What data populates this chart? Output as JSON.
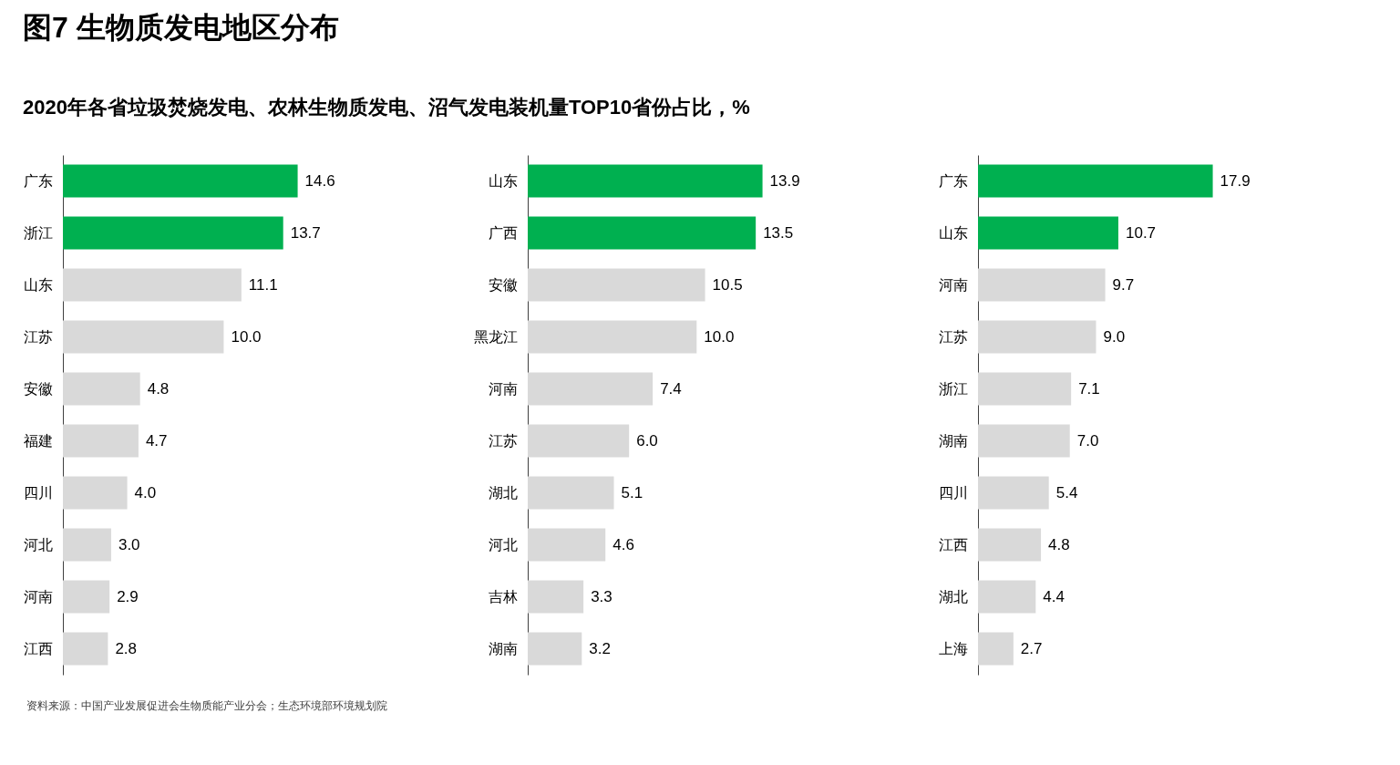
{
  "chart_data": [
    {
      "type": "bar",
      "orientation": "horizontal",
      "title": "图7  生物质发电地区分布",
      "subtitle": "2020年各省垃圾焚烧发电、农林生物质发电、沼气发电装机量TOP10省份占比，%",
      "categories": [
        "广东",
        "浙江",
        "山东",
        "江苏",
        "安徽",
        "福建",
        "四川",
        "河北",
        "河南",
        "江西"
      ],
      "values": [
        14.6,
        13.7,
        11.1,
        10.0,
        4.8,
        4.7,
        4.0,
        3.0,
        2.9,
        2.8
      ],
      "value_labels": [
        "14.6",
        "13.7",
        "11.1",
        "10.0",
        "4.8",
        "4.7",
        "4.0",
        "3.0",
        "2.9",
        "2.8"
      ],
      "colors": [
        "#00b050",
        "#00b050",
        "#d9d9d9",
        "#d9d9d9",
        "#d9d9d9",
        "#d9d9d9",
        "#d9d9d9",
        "#d9d9d9",
        "#d9d9d9",
        "#d9d9d9"
      ]
    },
    {
      "type": "bar",
      "orientation": "horizontal",
      "categories": [
        "山东",
        "广西",
        "安徽",
        "黑龙江",
        "河南",
        "江苏",
        "湖北",
        "河北",
        "吉林",
        "湖南"
      ],
      "values": [
        13.9,
        13.5,
        10.5,
        10.0,
        7.4,
        6.0,
        5.1,
        4.6,
        3.3,
        3.2
      ],
      "value_labels": [
        "13.9",
        "13.5",
        "10.5",
        "10.0",
        "7.4",
        "6.0",
        "5.1",
        "4.6",
        "3.3",
        "3.2"
      ],
      "colors": [
        "#00b050",
        "#00b050",
        "#d9d9d9",
        "#d9d9d9",
        "#d9d9d9",
        "#d9d9d9",
        "#d9d9d9",
        "#d9d9d9",
        "#d9d9d9",
        "#d9d9d9"
      ]
    },
    {
      "type": "bar",
      "orientation": "horizontal",
      "annotations": [
        "资料来源：中国产业发展促进会生物质能产业分会；生态环境部环境规划院"
      ],
      "categories": [
        "广东",
        "山东",
        "河南",
        "江苏",
        "浙江",
        "湖南",
        "四川",
        "江西",
        "湖北",
        "上海"
      ],
      "values": [
        17.9,
        10.7,
        9.7,
        9.0,
        7.1,
        7.0,
        5.4,
        4.8,
        4.4,
        2.7
      ],
      "value_labels": [
        "17.9",
        "10.7",
        "9.7",
        "9.0",
        "7.1",
        "7.0",
        "5.4",
        "4.8",
        "4.4",
        "2.7"
      ],
      "colors": [
        "#00b050",
        "#00b050",
        "#d9d9d9",
        "#d9d9d9",
        "#d9d9d9",
        "#d9d9d9",
        "#d9d9d9",
        "#d9d9d9",
        "#d9d9d9",
        "#d9d9d9"
      ]
    }
  ]
}
